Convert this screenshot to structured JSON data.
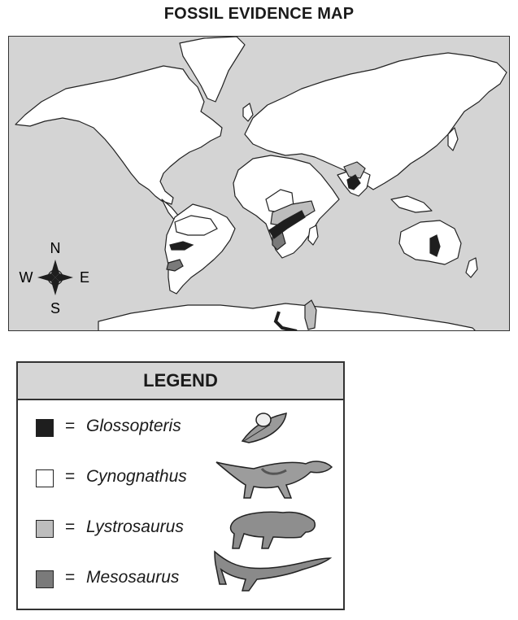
{
  "title": "FOSSIL EVIDENCE MAP",
  "compass": {
    "north": "N",
    "south": "S",
    "east": "E",
    "west": "W"
  },
  "legend": {
    "header": "LEGEND",
    "equals": "=",
    "items": [
      {
        "label": "Glossopteris",
        "color": "#1e1e1e",
        "icon": "glossopteris-leaf-icon"
      },
      {
        "label": "Cynognathus",
        "color": "#ffffff",
        "icon": "cynognathus-icon"
      },
      {
        "label": "Lystrosaurus",
        "color": "#bdbdbd",
        "icon": "lystrosaurus-icon"
      },
      {
        "label": "Mesosaurus",
        "color": "#7a7a7a",
        "icon": "mesosaurus-icon"
      }
    ]
  },
  "colors": {
    "ocean": "#d4d4d4",
    "land": "#ffffff",
    "outline": "#222222"
  }
}
